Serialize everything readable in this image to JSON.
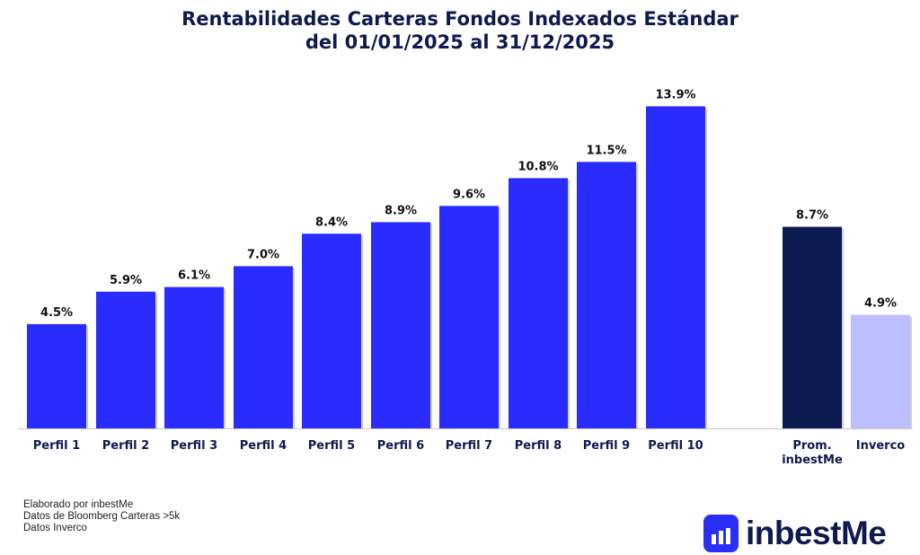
{
  "title_line1": "Rentabilidades Carteras Fondos Indexados Estándar",
  "title_line2": "del 01/01/2025 al 31/12/2025",
  "chart_data": {
    "type": "bar",
    "title": "Rentabilidades Carteras Fondos Indexados Estándar del 01/01/2025 al 31/12/2025",
    "categories": [
      "Perfil 1",
      "Perfil 2",
      "Perfil 3",
      "Perfil 4",
      "Perfil 5",
      "Perfil 6",
      "Perfil 7",
      "Perfil 8",
      "Perfil 9",
      "Perfil 10",
      "Prom. inbestMe",
      "Inverco"
    ],
    "values": [
      4.5,
      5.9,
      6.1,
      7.0,
      8.4,
      8.9,
      9.6,
      10.8,
      11.5,
      13.9,
      8.7,
      4.9
    ],
    "labels": [
      "4.5%",
      "5.9%",
      "6.1%",
      "7.0%",
      "8.4%",
      "8.9%",
      "9.6%",
      "10.8%",
      "11.5%",
      "13.9%",
      "8.7%",
      "4.9%"
    ],
    "colors": [
      "#2a2cff",
      "#2a2cff",
      "#2a2cff",
      "#2a2cff",
      "#2a2cff",
      "#2a2cff",
      "#2a2cff",
      "#2a2cff",
      "#2a2cff",
      "#2a2cff",
      "#0d1a52",
      "#bcbffc"
    ],
    "ylim": [
      0,
      14
    ],
    "grid": false,
    "xlabel": "",
    "ylabel": ""
  },
  "notes": [
    "Elaborado por inbestMe",
    "Datos de Bloomberg  Carteras >5k",
    "Datos Inverco"
  ],
  "logo": {
    "text": "inbestMe"
  }
}
